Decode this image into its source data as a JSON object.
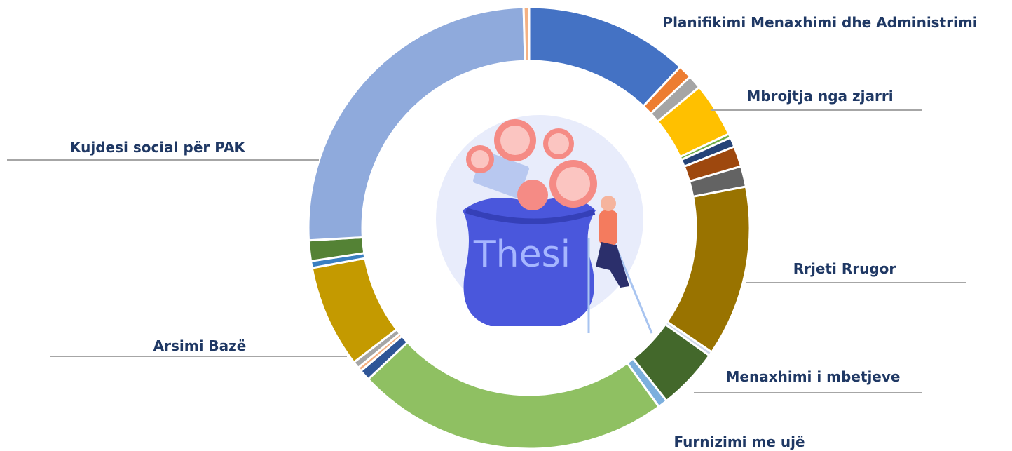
{
  "chart_data": {
    "type": "donut",
    "center_text": "Thesi",
    "categories": [
      "Planifikimi Menaxhimi dhe Administrimi",
      null,
      null,
      "Mbrojtja nga zjarri",
      null,
      null,
      null,
      null,
      "Rrjeti Rrugor",
      null,
      "Menaxhimi i mbetjeve",
      null,
      "Furnizimi me ujë",
      null,
      null,
      null,
      "Arsimi Bazë",
      null,
      null,
      "Kujdesi social për PAK",
      null
    ],
    "values": [
      12,
      1,
      1,
      4,
      0.3,
      0.7,
      1.5,
      1.5,
      12.5,
      0.3,
      4.5,
      0.7,
      23,
      0.8,
      0.3,
      0.5,
      7.5,
      0.5,
      1.5,
      25.5,
      0.4
    ],
    "colors": [
      "#4472c4",
      "#ed7d31",
      "#a5a5a5",
      "#ffc000",
      "#70ad47",
      "#264478",
      "#9e480e",
      "#636363",
      "#997300",
      "#cfd8ea",
      "#43682b",
      "#7cafdd",
      "#8fc062",
      "#2f5597",
      "#f4b183",
      "#a5a5a5",
      "#c49a00",
      "#3a7fc1",
      "#548235",
      "#8faadc",
      "#f4b183"
    ]
  }
}
